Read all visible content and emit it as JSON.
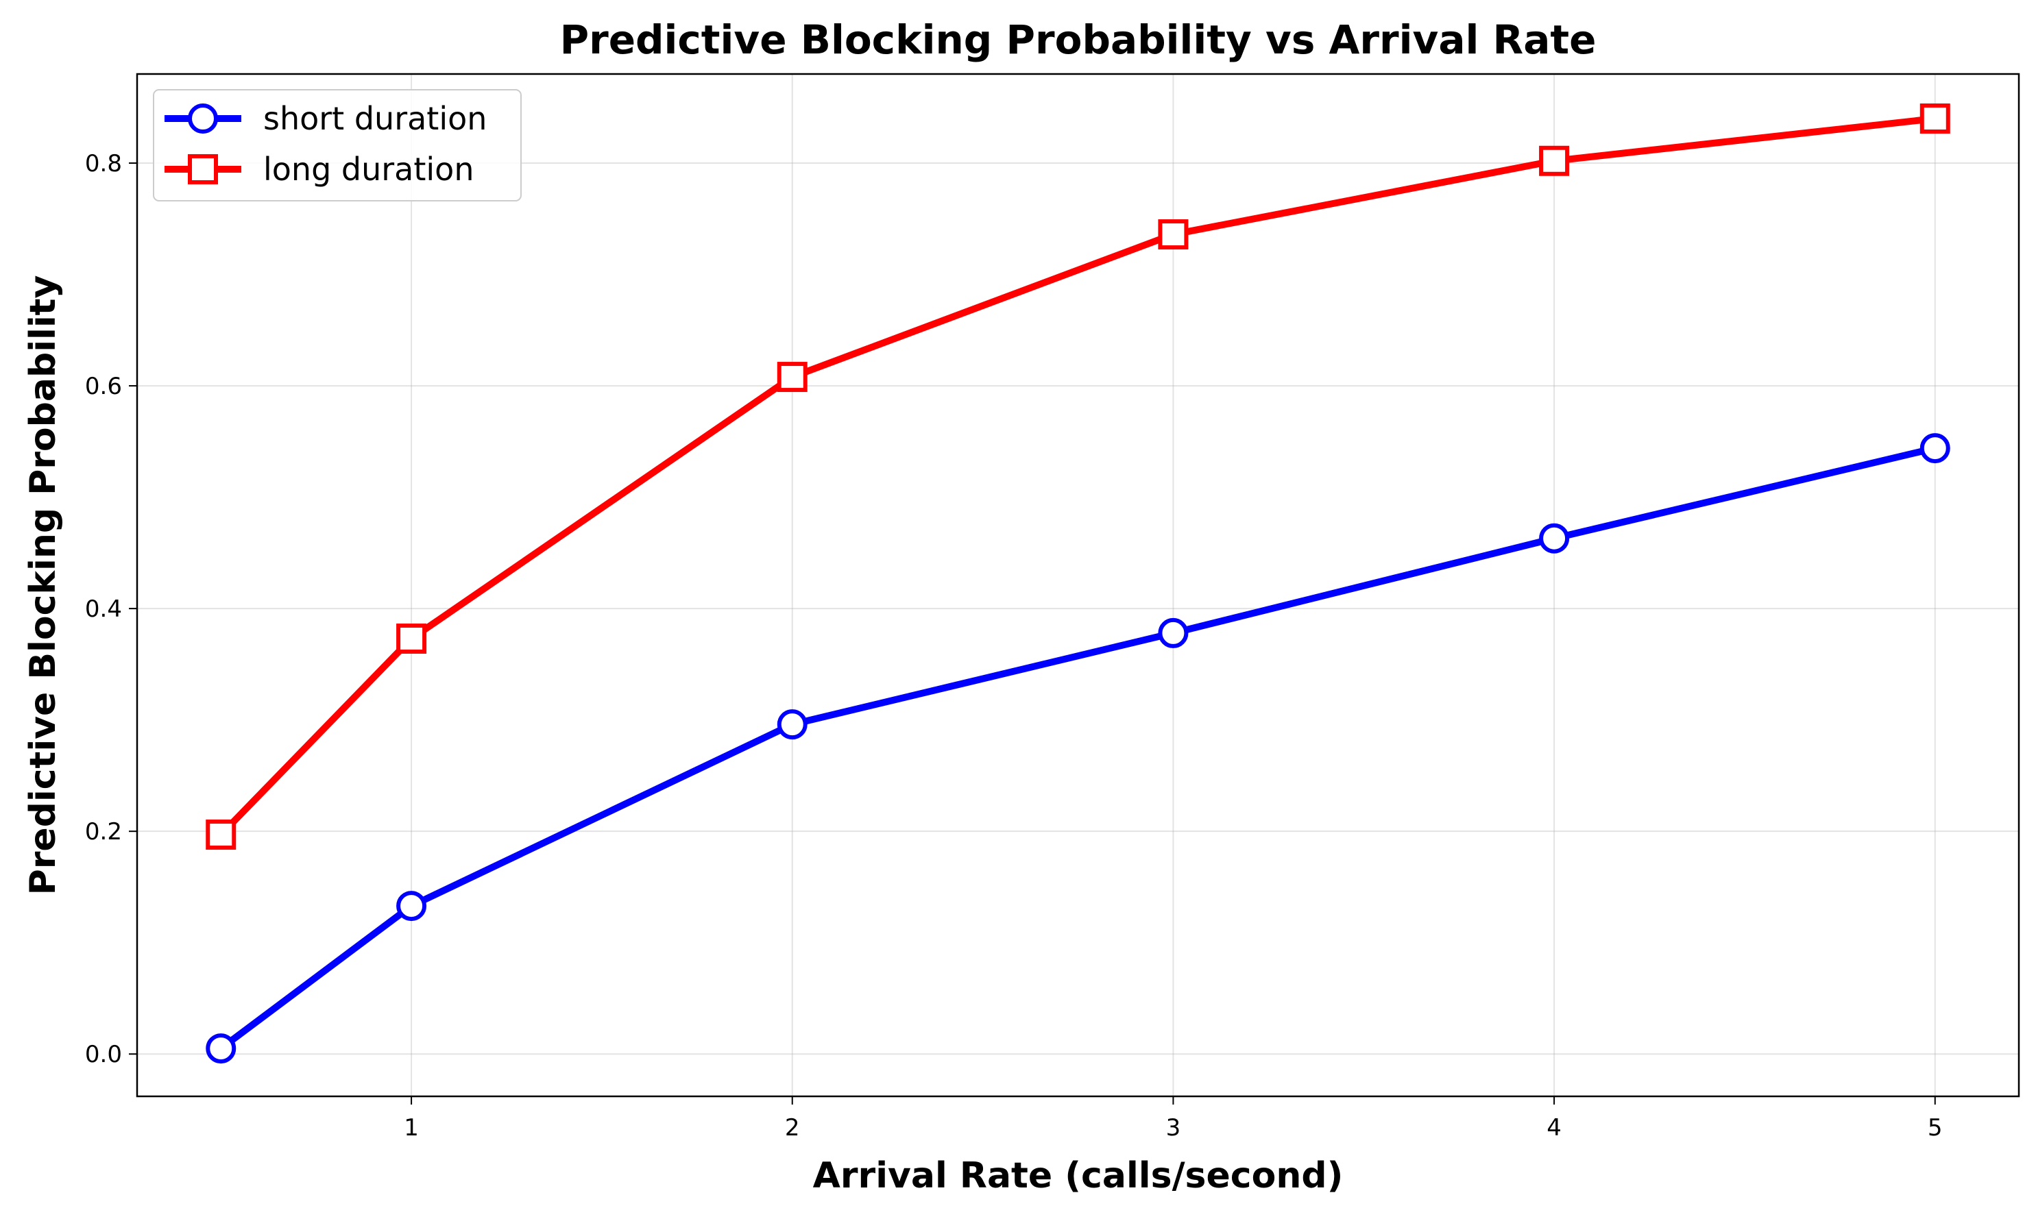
{
  "chart_data": {
    "type": "line",
    "title": "Predictive Blocking Probability vs Arrival Rate",
    "xlabel": "Arrival Rate (calls/second)",
    "ylabel": "Predictive Blocking Probability",
    "x": [
      0.5,
      1,
      2,
      3,
      4,
      5
    ],
    "xlim": [
      0.28,
      5.22
    ],
    "ylim": [
      -0.038,
      0.88
    ],
    "xticks": [
      1,
      2,
      3,
      4,
      5
    ],
    "yticks": [
      0.0,
      0.2,
      0.4,
      0.6,
      0.8
    ],
    "xtick_labels": [
      "1",
      "2",
      "3",
      "4",
      "5"
    ],
    "ytick_labels": [
      "0.0",
      "0.2",
      "0.4",
      "0.6",
      "0.8"
    ],
    "grid": true,
    "legend_position": "top-left",
    "series": [
      {
        "name": "short duration",
        "color": "#0000ff",
        "marker": "circle",
        "values": [
          0.005,
          0.133,
          0.296,
          0.378,
          0.463,
          0.544
        ]
      },
      {
        "name": "long duration",
        "color": "#ff0000",
        "marker": "square",
        "values": [
          0.197,
          0.373,
          0.608,
          0.736,
          0.802,
          0.84
        ]
      }
    ]
  }
}
